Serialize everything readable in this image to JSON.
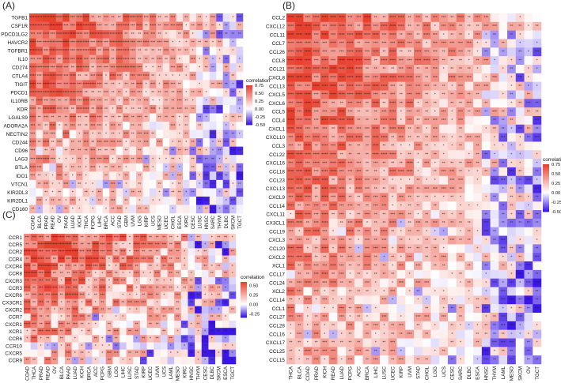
{
  "chart_data": [
    {
      "type": "heatmap",
      "panel_label": "(A)",
      "rows": [
        "TGFB1",
        "CSF1R",
        "PDCD1LG2",
        "HAVCR2",
        "TGFBR1",
        "IL10",
        "CD274",
        "CTLA4",
        "TIGIT",
        "PDCD1",
        "IL10RB",
        "KDR",
        "LGALS9",
        "ADORA2A",
        "NECTIN2",
        "CD244",
        "CD96",
        "LAG3",
        "BTLA",
        "IDO1",
        "VTCN1",
        "KIR2DL3",
        "KIR2DL1",
        "CD160"
      ],
      "columns": [
        "COAD",
        "BLCA",
        "PRAD",
        "READ",
        "OV",
        "PAAD",
        "LUAD",
        "KICH",
        "THCA",
        "PCPG",
        "LIHC",
        "BRCA",
        "ACC",
        "STAD",
        "GBM",
        "UVM",
        "LGG",
        "KIRP",
        "UCS",
        "MESO",
        "UCEC",
        "CHOL",
        "ESCA",
        "KIRC",
        "CESC",
        "LUSC",
        "HNSC",
        "SARC",
        "THYM",
        "DLBC",
        "SKCM",
        "TGCT"
      ],
      "legend": {
        "title": "correlation",
        "ticks": [
          "0.75",
          "0.50",
          "0.25",
          "0.00",
          "-0.25",
          "-0.50"
        ]
      },
      "value_range": [
        -0.5,
        0.75
      ],
      "significance_marks": [
        "*",
        "**",
        "***",
        "****"
      ]
    },
    {
      "type": "heatmap",
      "panel_label": "(B)",
      "rows": [
        "CCL2",
        "CXCL12",
        "CCL11",
        "CCL7",
        "CCL26",
        "CCL8",
        "CCL21",
        "CXCL8",
        "CCL13",
        "CXCL5",
        "CXCL6",
        "CCL5",
        "CCL4",
        "CXCL1",
        "CXCL10",
        "CCL3",
        "CCL22",
        "CXCL16",
        "CCL18",
        "CCL23",
        "CXCL13",
        "CXCL9",
        "CCL14",
        "CXCL11",
        "CX3CL1",
        "CCL19",
        "CXCL3",
        "CCL20",
        "CXCL2",
        "XCL1",
        "CCL17",
        "CCL24",
        "XCL2",
        "CCL14",
        "CCL1",
        "CCL27",
        "CCL28",
        "CCL16",
        "CXCL17",
        "CCL25",
        "CCL15"
      ],
      "columns": [
        "THCA",
        "BLCA",
        "COAD",
        "PRAD",
        "KICH",
        "READ",
        "LUAD",
        "PCPG",
        "ACC",
        "BRCA",
        "LIHC",
        "LUSC",
        "UCEC",
        "KIRP",
        "UVM",
        "STAD",
        "CHOL",
        "LGG",
        "UCS",
        "CESC",
        "SARC",
        "DLBC",
        "ESCA",
        "HNSC",
        "THYM",
        "LAML",
        "MESO",
        "SKCM",
        "OV",
        "TGCT"
      ],
      "legend": {
        "title": "correlation",
        "ticks": [
          "0.75",
          "0.50",
          "0.25",
          "0.00",
          "-0.25",
          "-0.50"
        ]
      },
      "value_range": [
        -0.5,
        0.75
      ],
      "significance_marks": [
        "*",
        "**",
        "***",
        "****"
      ]
    },
    {
      "type": "heatmap",
      "panel_label": "(C)",
      "rows": [
        "CCR1",
        "CCR5",
        "CCR2",
        "CCR4",
        "CXCR4",
        "CCR8",
        "CXCR3",
        "CCR3",
        "CXCR6",
        "CX3CR1",
        "CXCR2",
        "CCR7",
        "CXCR1",
        "XCR1",
        "CCR6",
        "CCR10",
        "CXCR5",
        "CCR9"
      ],
      "columns": [
        "COAD",
        "THCA",
        "PRAD",
        "READ",
        "OV",
        "BLCA",
        "PAAD",
        "LUAD",
        "KICH",
        "BRCA",
        "ACC",
        "PCPG",
        "GBM",
        "LGG",
        "LIHC",
        "LUSC",
        "STAD",
        "KIRP",
        "UCEC",
        "UVM",
        "UCS",
        "LAML",
        "MESO",
        "KIRC",
        "HNSC",
        "THYM",
        "CESC",
        "DLBC",
        "SKCM",
        "ESCA",
        "TGCT"
      ],
      "legend": {
        "title": "correlation",
        "ticks": [
          "0.50",
          "0.25",
          "0.00",
          "-0.25"
        ]
      },
      "value_range": [
        -0.35,
        0.6
      ],
      "significance_marks": [
        "*",
        "**",
        "***",
        "****"
      ]
    }
  ],
  "colors": {
    "high": "#e8402e",
    "mid": "#ffffff",
    "low": "#3b16e6"
  }
}
